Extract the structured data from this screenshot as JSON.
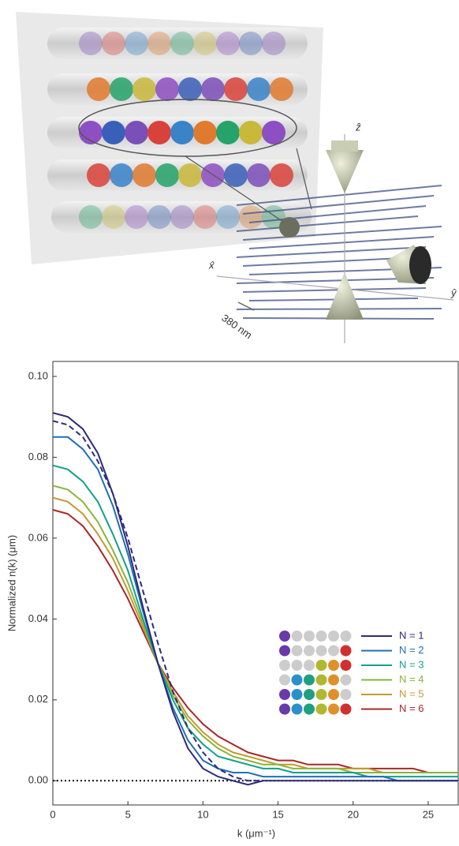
{
  "illustration": {
    "axis_z": "ẑ",
    "axis_x": "x̂",
    "axis_y": "ŷ",
    "spacing": "380 nm"
  },
  "chart_data": {
    "type": "line",
    "xlabel": "k (μm⁻¹)",
    "ylabel": "Normalized n(k) (μm)",
    "x": [
      0,
      1,
      2,
      3,
      4,
      5,
      6,
      7,
      8,
      9,
      10,
      11,
      12,
      13,
      14,
      15,
      16,
      17,
      18,
      19,
      20,
      21,
      22,
      23,
      24,
      25,
      26,
      27
    ],
    "xlim": [
      0,
      27
    ],
    "xticks": [
      0,
      5,
      10,
      15,
      20,
      25
    ],
    "ylim": [
      -0.006,
      0.1037
    ],
    "yticks": [
      {
        "value": 0,
        "label": "0.00"
      },
      {
        "value": 0.02,
        "label": "0.02"
      },
      {
        "value": 0.04,
        "label": "0.04"
      },
      {
        "value": 0.06,
        "label": "0.06"
      },
      {
        "value": 0.08,
        "label": "0.08"
      },
      {
        "value": 0.1,
        "label": "0.10"
      }
    ],
    "zero_line": true,
    "series": [
      {
        "name": "N = 1",
        "color": "#2e2a7a",
        "values": [
          0.091,
          0.09,
          0.087,
          0.081,
          0.071,
          0.058,
          0.043,
          0.029,
          0.017,
          0.008,
          0.003,
          0.001,
          0.0,
          -0.001,
          0.0,
          0.0,
          0.0,
          0.0,
          0.0,
          0.0,
          0.0,
          0.0,
          0.0,
          0.0,
          0.0,
          0.0,
          0.0,
          0.0
        ]
      },
      {
        "name": "N = 2",
        "color": "#1f6fb5",
        "values": [
          0.085,
          0.085,
          0.082,
          0.077,
          0.068,
          0.056,
          0.042,
          0.029,
          0.018,
          0.01,
          0.005,
          0.003,
          0.002,
          0.002,
          0.001,
          0.001,
          0.001,
          0.001,
          0.001,
          0.001,
          0.001,
          0.001,
          0.001,
          0.0,
          0.0,
          0.0,
          0.0,
          0.0
        ]
      },
      {
        "name": "N = 3",
        "color": "#12a08a",
        "values": [
          0.078,
          0.077,
          0.074,
          0.069,
          0.061,
          0.052,
          0.04,
          0.029,
          0.02,
          0.013,
          0.009,
          0.006,
          0.005,
          0.004,
          0.003,
          0.003,
          0.002,
          0.002,
          0.002,
          0.002,
          0.002,
          0.001,
          0.001,
          0.001,
          0.001,
          0.001,
          0.001,
          0.001
        ]
      },
      {
        "name": "N = 4",
        "color": "#8ab43a",
        "values": [
          0.073,
          0.072,
          0.069,
          0.064,
          0.057,
          0.049,
          0.039,
          0.029,
          0.021,
          0.015,
          0.011,
          0.008,
          0.006,
          0.005,
          0.004,
          0.004,
          0.003,
          0.003,
          0.003,
          0.003,
          0.002,
          0.002,
          0.002,
          0.002,
          0.002,
          0.002,
          0.002,
          0.002
        ]
      },
      {
        "name": "N = 5",
        "color": "#c49a30",
        "values": [
          0.07,
          0.069,
          0.066,
          0.061,
          0.055,
          0.047,
          0.038,
          0.029,
          0.022,
          0.016,
          0.012,
          0.009,
          0.007,
          0.006,
          0.005,
          0.004,
          0.004,
          0.003,
          0.003,
          0.003,
          0.003,
          0.003,
          0.002,
          0.002,
          0.002,
          0.002,
          0.002,
          0.002
        ]
      },
      {
        "name": "N = 6",
        "color": "#a5282a",
        "values": [
          0.067,
          0.066,
          0.063,
          0.058,
          0.052,
          0.045,
          0.037,
          0.029,
          0.023,
          0.018,
          0.014,
          0.011,
          0.009,
          0.007,
          0.006,
          0.005,
          0.005,
          0.004,
          0.004,
          0.004,
          0.003,
          0.003,
          0.003,
          0.003,
          0.003,
          0.002,
          0.002,
          0.002
        ]
      }
    ],
    "fit": {
      "color": "#2e2a7a",
      "values": [
        0.089,
        0.088,
        0.085,
        0.079,
        0.071,
        0.06,
        0.047,
        0.034,
        0.022,
        0.013,
        0.007,
        0.003,
        0.001,
        0.0,
        0.0,
        null,
        null,
        null,
        null,
        null,
        null,
        null,
        null,
        null,
        null,
        null,
        null,
        null
      ]
    }
  }
}
